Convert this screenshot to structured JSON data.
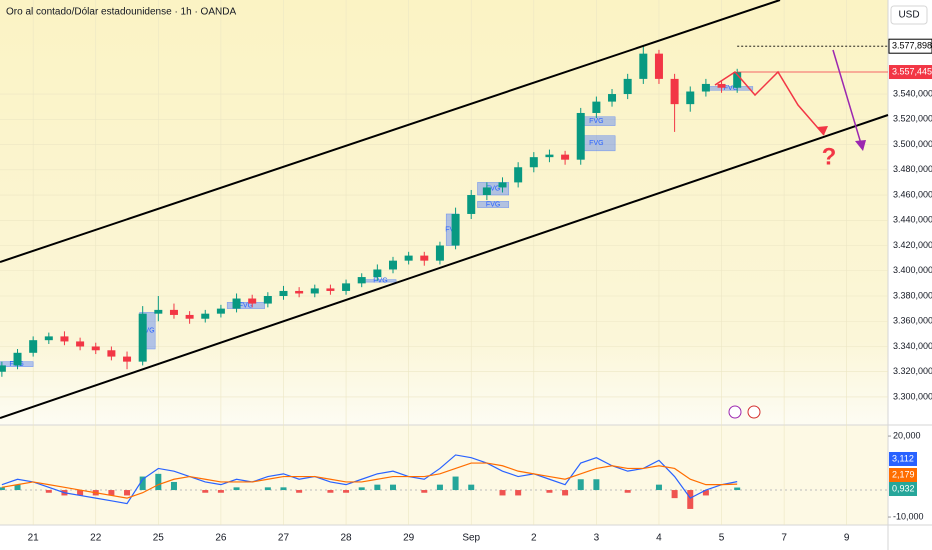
{
  "title": "Oro al contado/Dólar estadounidense · 1h · OANDA",
  "currency": "USD",
  "question_mark": "?",
  "chart_data": [
    {
      "type": "candlestick",
      "colors": {
        "up": "#089981",
        "down": "#f23645"
      },
      "x": [
        -0.5,
        -0.25,
        0,
        0.25,
        0.5,
        0.75,
        1,
        1.25,
        1.5,
        1.75,
        2,
        2.25,
        2.5,
        2.75,
        3,
        3.25,
        3.5,
        3.75,
        4,
        4.25,
        4.5,
        4.75,
        5,
        5.25,
        5.5,
        5.75,
        6,
        6.25,
        6.5,
        6.75,
        7,
        7.25,
        7.5,
        7.75,
        8,
        8.25,
        8.5,
        8.75,
        9,
        9.25,
        9.5,
        9.75,
        10,
        10.25,
        10.5,
        10.75,
        11,
        11.25
      ],
      "open": [
        3320,
        3325,
        3335,
        3345,
        3348,
        3344,
        3340,
        3337,
        3332,
        3328,
        3366,
        3369,
        3365,
        3362,
        3366,
        3370,
        3378,
        3374,
        3380,
        3384,
        3382,
        3386,
        3384,
        3390,
        3395,
        3401,
        3408,
        3412,
        3408,
        3420,
        3445,
        3460,
        3466,
        3470,
        3482,
        3490,
        3492,
        3488,
        3525,
        3534,
        3540,
        3552,
        3572,
        3552,
        3532,
        3542,
        3548,
        3545
      ],
      "high": [
        3328,
        3338,
        3348,
        3351,
        3352,
        3347,
        3343,
        3340,
        3336,
        3372,
        3380,
        3374,
        3368,
        3369,
        3373,
        3382,
        3381,
        3383,
        3388,
        3387,
        3389,
        3389,
        3393,
        3398,
        3405,
        3411,
        3415,
        3415,
        3423,
        3450,
        3464,
        3470,
        3474,
        3486,
        3494,
        3496,
        3495,
        3529,
        3538,
        3544,
        3556,
        3577.898,
        3575,
        3556,
        3546,
        3552,
        3551,
        3560
      ],
      "low": [
        3316,
        3322,
        3332,
        3342,
        3341,
        3337,
        3334,
        3329,
        3322,
        3325,
        3360,
        3362,
        3358,
        3359,
        3363,
        3367,
        3371,
        3371,
        3377,
        3379,
        3379,
        3381,
        3381,
        3387,
        3392,
        3398,
        3405,
        3404,
        3405,
        3417,
        3441,
        3456,
        3462,
        3466,
        3478,
        3486,
        3484,
        3484,
        3521,
        3530,
        3536,
        3548,
        3548,
        3510,
        3526,
        3538,
        3541,
        3541
      ],
      "close": [
        3325,
        3335,
        3345,
        3348,
        3344,
        3340,
        3337,
        3332,
        3328,
        3366,
        3369,
        3365,
        3362,
        3366,
        3370,
        3378,
        3374,
        3380,
        3384,
        3382,
        3386,
        3384,
        3390,
        3395,
        3401,
        3408,
        3412,
        3408,
        3420,
        3445,
        3460,
        3466,
        3470,
        3482,
        3490,
        3492,
        3488,
        3525,
        3534,
        3540,
        3552,
        3572,
        3552,
        3532,
        3542,
        3548,
        3545,
        3557.445
      ],
      "xlim": [
        -0.53,
        13.66
      ],
      "xticks": [
        {
          "value": 0,
          "label": "21"
        },
        {
          "value": 1,
          "label": "22"
        },
        {
          "value": 2,
          "label": "25"
        },
        {
          "value": 3,
          "label": "26"
        },
        {
          "value": 4,
          "label": "27"
        },
        {
          "value": 5,
          "label": "28"
        },
        {
          "value": 6,
          "label": "29"
        },
        {
          "value": 7,
          "label": "Sep"
        },
        {
          "value": 8,
          "label": "2"
        },
        {
          "value": 9,
          "label": "3"
        },
        {
          "value": 10,
          "label": "4"
        },
        {
          "value": 11,
          "label": "5"
        },
        {
          "value": 12,
          "label": "7"
        },
        {
          "value": 13,
          "label": "9"
        }
      ],
      "ylim": [
        3277.8,
        3614.5
      ],
      "yticks": [
        {
          "value": 3300,
          "label": "3.300,000"
        },
        {
          "value": 3320,
          "label": "3.320,000"
        },
        {
          "value": 3340,
          "label": "3.340,000"
        },
        {
          "value": 3360,
          "label": "3.360,000"
        },
        {
          "value": 3380,
          "label": "3.380,000"
        },
        {
          "value": 3400,
          "label": "3.400,000"
        },
        {
          "value": 3420,
          "label": "3.420,000"
        },
        {
          "value": 3440,
          "label": "3.440,000"
        },
        {
          "value": 3460,
          "label": "3.460,000"
        },
        {
          "value": 3480,
          "label": "3.480,000"
        },
        {
          "value": 3500,
          "label": "3.500,000"
        },
        {
          "value": 3520,
          "label": "3.520,000"
        },
        {
          "value": 3540,
          "label": "3.540,000"
        }
      ],
      "grid": true,
      "price_labels": [
        {
          "value": 3577.898,
          "label": "3.577,898",
          "color": "#ffffff",
          "text_color": "#000000",
          "dashed": true
        },
        {
          "value": 3557.445,
          "label": "3.557,445",
          "color": "#f23645",
          "text_color": "#ffffff",
          "dashed": false
        }
      ],
      "zones": [
        {
          "x": [
            1.7,
            1.95
          ],
          "y": [
            3338,
            3367
          ],
          "label": "FVG"
        },
        {
          "x": [
            -0.53,
            0.0
          ],
          "y": [
            3324,
            3328
          ],
          "label": "FVG"
        },
        {
          "x": [
            3.1,
            3.7
          ],
          "y": [
            3370,
            3375
          ],
          "label": "FVG"
        },
        {
          "x": [
            5.3,
            5.8
          ],
          "y": [
            3391,
            3393
          ],
          "label": "FVG"
        },
        {
          "x": [
            6.6,
            6.8
          ],
          "y": [
            3420,
            3445
          ],
          "label": "FVG"
        },
        {
          "x": [
            7.1,
            7.6
          ],
          "y": [
            3460,
            3470
          ],
          "label": "FVG"
        },
        {
          "x": [
            7.1,
            7.6
          ],
          "y": [
            3450,
            3455
          ],
          "label": "FVG"
        },
        {
          "x": [
            8.7,
            9.3
          ],
          "y": [
            3495,
            3507
          ],
          "label": "FVG"
        },
        {
          "x": [
            8.7,
            9.3
          ],
          "y": [
            3515,
            3522
          ],
          "label": "FVG"
        },
        {
          "x": [
            10.8,
            11.5
          ],
          "y": [
            3543,
            3546
          ],
          "label": "FVG"
        }
      ]
    },
    {
      "type": "macd",
      "series": [
        {
          "color": "#2962ff",
          "values": [
            2,
            4,
            3,
            1,
            -1,
            -2,
            -3,
            -4,
            -5,
            4,
            8,
            7,
            5,
            3,
            2,
            4,
            3,
            5,
            6,
            4,
            5,
            3,
            2,
            4,
            6,
            7,
            5,
            4,
            8,
            13,
            12,
            10,
            7,
            5,
            6,
            4,
            2,
            10,
            12,
            9,
            7,
            8,
            11,
            5,
            -3,
            0,
            2,
            3.112
          ]
        },
        {
          "color": "#ff6d00",
          "values": [
            1,
            2,
            3,
            2,
            1,
            0,
            -1,
            -2,
            -3,
            -1,
            2,
            4,
            5,
            4,
            3,
            3,
            3,
            4,
            5,
            5,
            5,
            4,
            3,
            3,
            4,
            5,
            5,
            5,
            6,
            8,
            10,
            10,
            9,
            7,
            6,
            5,
            4,
            6,
            8,
            9,
            8,
            8,
            9,
            8,
            4,
            2,
            2,
            2.179
          ]
        }
      ],
      "histogram": {
        "up_color": "#26a69a",
        "down_color": "#ef5350",
        "values": [
          1,
          2,
          0,
          -1,
          -2,
          -2,
          -2,
          -2,
          -2,
          5,
          6,
          3,
          0,
          -1,
          -1,
          1,
          0,
          1,
          1,
          -1,
          0,
          -1,
          -1,
          1,
          2,
          2,
          0,
          -1,
          2,
          5,
          2,
          0,
          -2,
          -2,
          0,
          -1,
          -2,
          4,
          4,
          0,
          -1,
          0,
          2,
          -3,
          -7,
          -2,
          0,
          0.932
        ]
      },
      "ylim": [
        -11.1,
        24.1
      ],
      "yticks": [
        {
          "value": 20,
          "label": "20,000"
        },
        {
          "value": -10,
          "label": "-10,000"
        }
      ],
      "price_labels": [
        {
          "value": 3.112,
          "label": "3,112",
          "color": "#2962ff"
        },
        {
          "value": 2.179,
          "label": "2,179",
          "color": "#ff6d00"
        },
        {
          "value": 0.932,
          "label": "0,932",
          "color": "#26a69a"
        }
      ]
    }
  ]
}
